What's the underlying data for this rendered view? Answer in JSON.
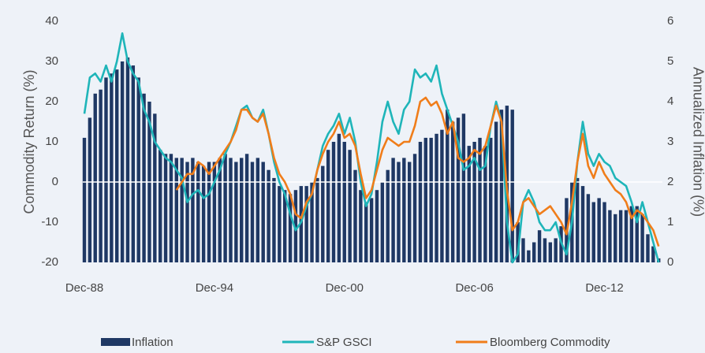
{
  "chart_data": {
    "type": "bar_line_combo",
    "y_label": "Commodity Return (%)",
    "y2_label": "Annualized Inflation (%)",
    "categories": [
      "Dec-88",
      null,
      null,
      null,
      null,
      null,
      null,
      null,
      null,
      null,
      null,
      null,
      null,
      null,
      null,
      null,
      null,
      null,
      null,
      null,
      null,
      null,
      null,
      null,
      "Dec-94",
      null,
      null,
      null,
      null,
      null,
      null,
      null,
      null,
      null,
      null,
      null,
      null,
      null,
      null,
      null,
      null,
      null,
      null,
      null,
      null,
      null,
      null,
      null,
      "Dec-00",
      null,
      null,
      null,
      null,
      null,
      null,
      null,
      null,
      null,
      null,
      null,
      null,
      null,
      null,
      null,
      null,
      null,
      null,
      null,
      null,
      null,
      null,
      null,
      "Dec-06",
      null,
      null,
      null,
      null,
      null,
      null,
      null,
      null,
      null,
      null,
      null,
      null,
      null,
      null,
      null,
      null,
      null,
      null,
      null,
      null,
      null,
      null,
      null,
      "Dec-12",
      null,
      null,
      null,
      null,
      null,
      null,
      null,
      null,
      null,
      null
    ],
    "series": [
      {
        "name": "Inflation",
        "color": "#1f3864",
        "kind": "bar",
        "axis": "y2",
        "values": [
          3.1,
          3.6,
          4.2,
          4.3,
          4.6,
          4.7,
          4.8,
          5.0,
          5.1,
          4.9,
          4.6,
          4.2,
          4.0,
          3.7,
          2.8,
          2.7,
          2.7,
          2.6,
          2.6,
          2.5,
          2.6,
          2.5,
          2.4,
          2.5,
          2.5,
          2.6,
          2.7,
          2.6,
          2.5,
          2.6,
          2.7,
          2.5,
          2.6,
          2.5,
          2.3,
          2.1,
          1.9,
          1.8,
          1.7,
          1.8,
          1.9,
          1.9,
          2.0,
          2.1,
          2.4,
          2.8,
          3.0,
          3.2,
          3.0,
          2.8,
          2.3,
          1.8,
          1.5,
          1.6,
          1.8,
          2.0,
          2.3,
          2.6,
          2.5,
          2.6,
          2.5,
          2.7,
          3.0,
          3.1,
          3.1,
          3.2,
          3.3,
          3.8,
          3.5,
          3.6,
          3.7,
          2.9,
          3.0,
          3.1,
          2.9,
          3.1,
          3.5,
          3.8,
          3.9,
          3.8,
          1.0,
          0.6,
          0.3,
          0.5,
          0.8,
          0.6,
          0.5,
          0.6,
          0.9,
          1.6,
          2.0,
          2.1,
          1.9,
          1.7,
          1.5,
          1.6,
          1.5,
          1.3,
          1.2,
          1.3,
          1.3,
          1.4,
          1.4,
          1.2,
          0.7,
          0.4,
          0.1
        ]
      },
      {
        "name": "S&P GSCI",
        "color": "#1fb5b9",
        "kind": "line",
        "values": [
          17,
          26,
          27,
          25,
          29,
          25,
          30,
          37,
          30,
          27,
          25,
          18,
          15,
          10,
          8,
          6,
          5,
          3,
          1,
          -5,
          -3,
          -2,
          -4,
          -3,
          0,
          3,
          7,
          10,
          14,
          18,
          19,
          16,
          15,
          18,
          12,
          5,
          0,
          -3,
          -8,
          -12,
          -10,
          -6,
          -3,
          3,
          9,
          12,
          14,
          17,
          12,
          16,
          10,
          0,
          -6,
          -3,
          5,
          15,
          20,
          15,
          12,
          18,
          20,
          28,
          26,
          27,
          25,
          29,
          22,
          18,
          14,
          10,
          3,
          4,
          6,
          3,
          4,
          14,
          20,
          15,
          -10,
          -20,
          -18,
          -5,
          -2,
          -5,
          -10,
          -12,
          -12,
          -10,
          -15,
          -18,
          -10,
          5,
          15,
          7,
          4,
          7,
          5,
          4,
          1,
          0,
          -1,
          -5,
          -10,
          -5,
          -10,
          -15,
          -20
        ]
      },
      {
        "name": "Bloomberg Commodity",
        "color": "#f07d1a",
        "kind": "line",
        "values": [
          null,
          null,
          null,
          null,
          null,
          null,
          null,
          null,
          null,
          null,
          null,
          null,
          null,
          null,
          null,
          null,
          null,
          -2,
          0,
          2,
          2,
          5,
          4,
          2,
          4,
          6,
          8,
          10,
          13,
          18,
          18,
          16,
          15,
          17,
          12,
          6,
          2,
          0,
          -3,
          -8,
          -9,
          -5,
          -3,
          3,
          7,
          10,
          12,
          15,
          11,
          12,
          9,
          2,
          -4,
          -2,
          3,
          8,
          11,
          10,
          9,
          10,
          10,
          14,
          20,
          21,
          19,
          20,
          17,
          12,
          15,
          6,
          5,
          6,
          8,
          7,
          9,
          14,
          19,
          15,
          -2,
          -12,
          -10,
          -5,
          -4,
          -6,
          -8,
          -7,
          -6,
          -8,
          -10,
          -13,
          -5,
          5,
          12,
          4,
          1,
          5,
          2,
          0,
          -2,
          -3,
          -5,
          -9,
          -7,
          -8,
          -10,
          -12,
          -16
        ]
      }
    ],
    "ylim": [
      -20,
      40
    ],
    "yticks": [
      -20,
      -10,
      0,
      10,
      20,
      30,
      40
    ],
    "y2lim": [
      0,
      6
    ],
    "y2ticks": [
      0,
      1,
      2,
      3,
      4,
      5,
      6
    ],
    "background": "#eef2f8"
  }
}
